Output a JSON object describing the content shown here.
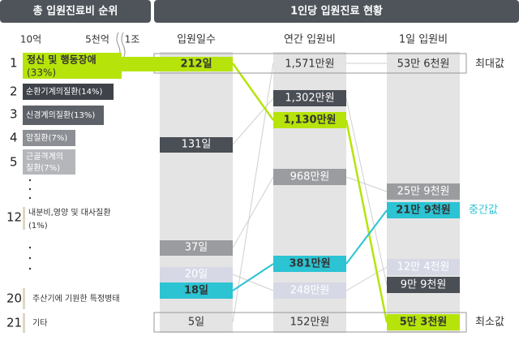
{
  "header": {
    "left_title": "총 입원진료비 순위",
    "right_title": "1인당 입원진료 현황"
  },
  "scale": [
    "10억",
    "5천억",
    "1조"
  ],
  "ranking": [
    {
      "rank": "1",
      "lines": [
        "정신 및 행동장애",
        "(33%)"
      ]
    },
    {
      "rank": "2",
      "lines": [
        "순환기계의질환(14%)"
      ]
    },
    {
      "rank": "3",
      "lines": [
        "신경계의질환(13%)"
      ]
    },
    {
      "rank": "4",
      "lines": [
        "암질환(7%)"
      ]
    },
    {
      "rank": "5",
      "lines": [
        "근골격계의",
        "질환(7%)"
      ]
    },
    {
      "rank": "12",
      "lines": [
        "내분비,영양 및 대사질환",
        "(1%)"
      ]
    },
    {
      "rank": "20",
      "lines": [
        "주산기에 기원한 특정병태"
      ]
    },
    {
      "rank": "21",
      "lines": [
        "기타"
      ]
    }
  ],
  "columns": [
    {
      "header": "입원일수",
      "cells": [
        "212일",
        "131일",
        "37일",
        "20일",
        "18일",
        "5일"
      ]
    },
    {
      "header": "연간 입원비",
      "cells": [
        "1,571만원",
        "1,302만원",
        "1,130만원",
        "968만원",
        "381만원",
        "248만원",
        "152만원"
      ]
    },
    {
      "header": "1일 입원비",
      "cells": [
        "53만 6천원",
        "25만 9천원",
        "21만 9천원",
        "12만 4천원",
        "9만 9천원",
        "5만 3천원"
      ]
    }
  ],
  "annotations": {
    "max": "최대값",
    "median": "중간값",
    "min": "최소값"
  }
}
